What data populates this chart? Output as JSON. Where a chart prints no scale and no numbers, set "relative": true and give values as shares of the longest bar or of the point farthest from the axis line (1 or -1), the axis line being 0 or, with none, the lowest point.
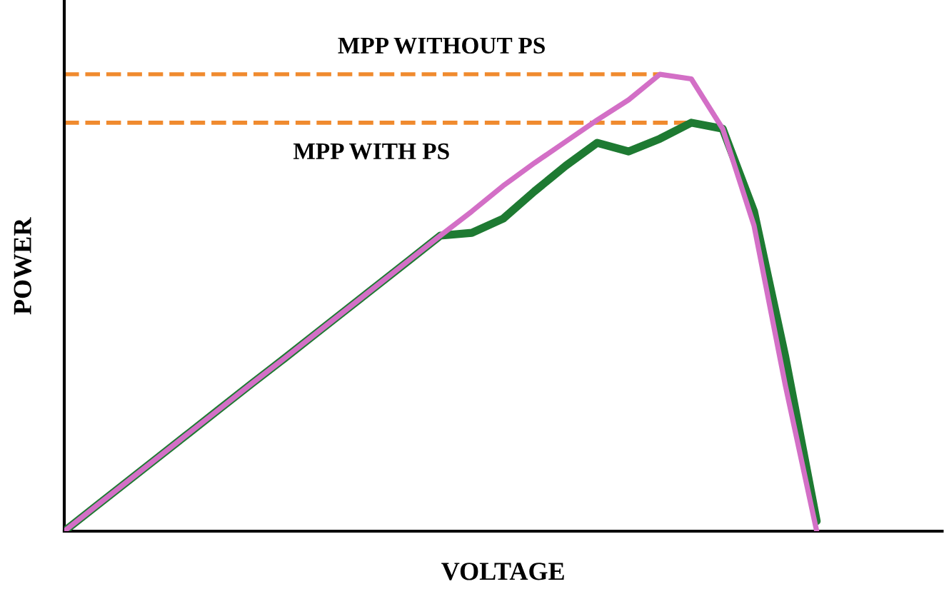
{
  "chart_data": {
    "type": "line",
    "relative": true,
    "xlabel": "VOLTAGE",
    "ylabel": "POWER",
    "marker": "none",
    "line_style": "solid",
    "categories": [
      null,
      null,
      null,
      null,
      null,
      null,
      null,
      null,
      null,
      null,
      null,
      null,
      null,
      null,
      null,
      null,
      null,
      null,
      null,
      null,
      null,
      null,
      null,
      null,
      null,
      null,
      null,
      null,
      null
    ],
    "series": [
      {
        "color": "#1e7a32",
        "values": [
          0,
          0.054,
          0.108,
          0.162,
          0.216,
          0.27,
          0.324,
          0.377,
          0.431,
          0.485,
          0.539,
          0.593,
          0.647,
          0.653,
          0.684,
          0.744,
          0.8,
          0.85,
          0.831,
          0.859,
          0.894,
          0.881,
          0.7,
          0.381,
          0.022,
          null,
          null,
          null,
          null
        ]
      },
      {
        "color": "#d36fc6",
        "values": [
          0,
          0.054,
          0.108,
          0.162,
          0.216,
          0.27,
          0.324,
          0.377,
          0.431,
          0.485,
          0.539,
          0.593,
          0.647,
          0.7,
          0.756,
          0.806,
          0.853,
          0.9,
          0.944,
          1,
          0.99,
          0.881,
          0.669,
          0.319,
          0,
          null,
          null,
          null,
          null
        ]
      }
    ],
    "ref_lines": [
      {
        "axis": "y",
        "value": 1,
        "label": "MPP WITHOUT PS",
        "color": "#f08a2e",
        "line_style": "dashed"
      },
      {
        "axis": "y",
        "value": 0.894,
        "label": "MPP WITH PS",
        "color": "#f08a2e",
        "line_style": "dashed"
      }
    ]
  }
}
